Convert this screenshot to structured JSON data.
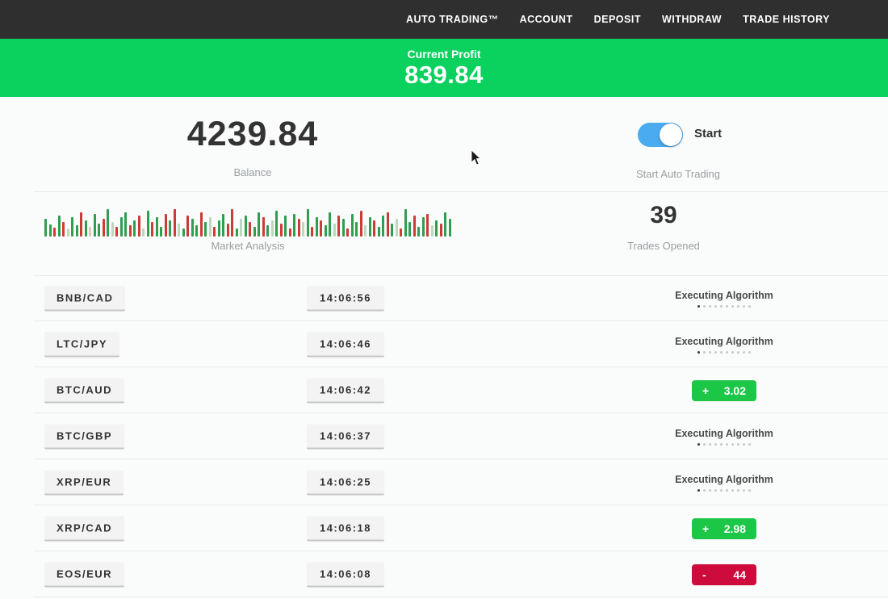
{
  "nav": {
    "items": [
      {
        "label": "AUTO TRADING™"
      },
      {
        "label": "ACCOUNT"
      },
      {
        "label": "DEPOSIT"
      },
      {
        "label": "WITHDRAW"
      },
      {
        "label": "TRADE HISTORY"
      }
    ]
  },
  "profit_banner": {
    "label": "Current Profit",
    "value": "839.84"
  },
  "account": {
    "balance_value": "4239.84",
    "balance_label": "Balance"
  },
  "auto_trading": {
    "toggle_state": "on",
    "toggle_label": "Start",
    "caption": "Start Auto Trading"
  },
  "market": {
    "label": "Market Analysis",
    "trades_opened_value": "39",
    "trades_opened_label": "Trades Opened",
    "bars": [
      [
        22,
        "g"
      ],
      [
        15,
        "g"
      ],
      [
        11,
        "r"
      ],
      [
        26,
        "g"
      ],
      [
        18,
        "r"
      ],
      [
        10,
        "G"
      ],
      [
        24,
        "g"
      ],
      [
        14,
        "g"
      ],
      [
        30,
        "r"
      ],
      [
        20,
        "g"
      ],
      [
        12,
        "R"
      ],
      [
        28,
        "g"
      ],
      [
        16,
        "g"
      ],
      [
        22,
        "r"
      ],
      [
        34,
        "g"
      ],
      [
        18,
        "G"
      ],
      [
        12,
        "r"
      ],
      [
        24,
        "g"
      ],
      [
        30,
        "g"
      ],
      [
        14,
        "r"
      ],
      [
        20,
        "g"
      ],
      [
        26,
        "r"
      ],
      [
        10,
        "G"
      ],
      [
        32,
        "g"
      ],
      [
        18,
        "r"
      ],
      [
        24,
        "g"
      ],
      [
        12,
        "g"
      ],
      [
        28,
        "r"
      ],
      [
        20,
        "g"
      ],
      [
        34,
        "r"
      ],
      [
        16,
        "G"
      ],
      [
        10,
        "g"
      ],
      [
        26,
        "r"
      ],
      [
        22,
        "g"
      ],
      [
        14,
        "g"
      ],
      [
        30,
        "r"
      ],
      [
        18,
        "g"
      ],
      [
        24,
        "G"
      ],
      [
        12,
        "r"
      ],
      [
        20,
        "g"
      ],
      [
        28,
        "g"
      ],
      [
        16,
        "r"
      ],
      [
        34,
        "r"
      ],
      [
        10,
        "g"
      ],
      [
        22,
        "G"
      ],
      [
        26,
        "g"
      ],
      [
        18,
        "r"
      ],
      [
        12,
        "g"
      ],
      [
        30,
        "g"
      ],
      [
        24,
        "r"
      ],
      [
        14,
        "g"
      ],
      [
        20,
        "G"
      ],
      [
        32,
        "g"
      ],
      [
        16,
        "r"
      ],
      [
        26,
        "g"
      ],
      [
        10,
        "r"
      ],
      [
        28,
        "g"
      ],
      [
        22,
        "r"
      ],
      [
        18,
        "G"
      ],
      [
        34,
        "g"
      ],
      [
        12,
        "r"
      ],
      [
        24,
        "g"
      ],
      [
        20,
        "r"
      ],
      [
        14,
        "g"
      ],
      [
        30,
        "g"
      ],
      [
        16,
        "G"
      ],
      [
        26,
        "r"
      ],
      [
        22,
        "g"
      ],
      [
        10,
        "r"
      ],
      [
        28,
        "g"
      ],
      [
        18,
        "g"
      ],
      [
        32,
        "r"
      ],
      [
        14,
        "G"
      ],
      [
        24,
        "g"
      ],
      [
        20,
        "r"
      ],
      [
        12,
        "g"
      ],
      [
        26,
        "g"
      ],
      [
        30,
        "r"
      ],
      [
        16,
        "g"
      ],
      [
        22,
        "G"
      ],
      [
        10,
        "r"
      ],
      [
        34,
        "g"
      ],
      [
        18,
        "g"
      ],
      [
        26,
        "r"
      ],
      [
        12,
        "g"
      ],
      [
        24,
        "g"
      ],
      [
        28,
        "r"
      ],
      [
        14,
        "G"
      ],
      [
        20,
        "g"
      ],
      [
        16,
        "r"
      ],
      [
        30,
        "g"
      ],
      [
        22,
        "g"
      ]
    ]
  },
  "trades": {
    "executing_label": "Executing Algorithm",
    "progress_dots": 10,
    "rows": [
      {
        "pair": "BNB/CAD",
        "time": "14:06:56",
        "status": "executing",
        "sign": "",
        "value": ""
      },
      {
        "pair": "LTC/JPY",
        "time": "14:06:46",
        "status": "executing",
        "sign": "",
        "value": ""
      },
      {
        "pair": "BTC/AUD",
        "time": "14:06:42",
        "status": "profit",
        "sign": "+",
        "value": "3.02"
      },
      {
        "pair": "BTC/GBP",
        "time": "14:06:37",
        "status": "executing",
        "sign": "",
        "value": ""
      },
      {
        "pair": "XRP/EUR",
        "time": "14:06:25",
        "status": "executing",
        "sign": "",
        "value": ""
      },
      {
        "pair": "XRP/CAD",
        "time": "14:06:18",
        "status": "profit",
        "sign": "+",
        "value": "2.98"
      },
      {
        "pair": "EOS/EUR",
        "time": "14:06:08",
        "status": "loss",
        "sign": "-",
        "value": "44"
      }
    ]
  },
  "colors": {
    "nav_bg": "#302f2f",
    "banner_green": "#0bd15e",
    "profit_green": "#1cc747",
    "loss_red": "#ce0b3d",
    "toggle_blue": "#4aabf0",
    "bar_palette": {
      "g": "#2f9e4e",
      "r": "#cc3b35",
      "G": "#bcd8c0",
      "R": "#e8c2bd"
    }
  }
}
